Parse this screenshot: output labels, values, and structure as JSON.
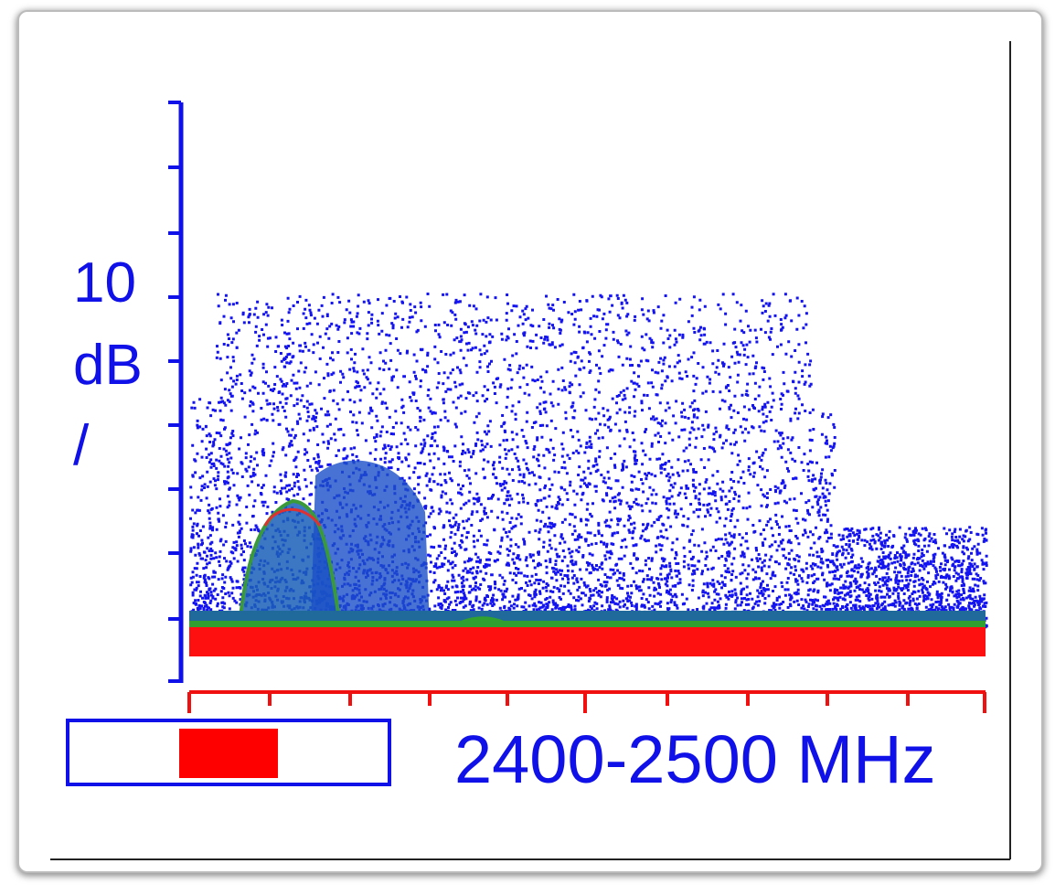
{
  "y_label": [
    "10",
    "dB",
    "/"
  ],
  "span": "2400-2500 MHz"
}
